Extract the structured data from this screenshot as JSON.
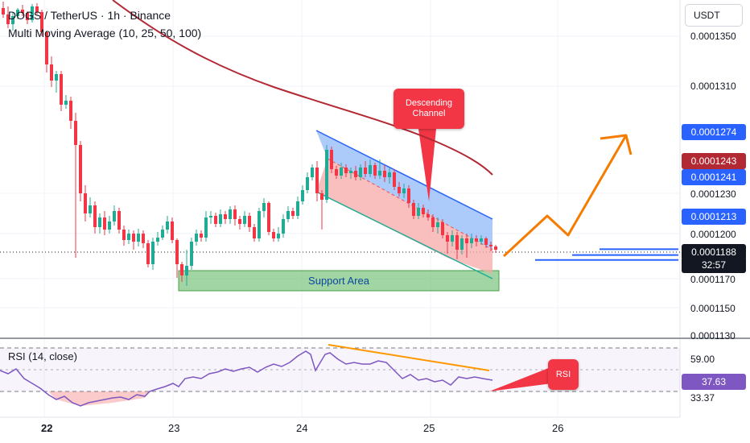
{
  "header": {
    "symbol_title": "DOGS / TetherUS · 1h · Binance",
    "indicator_title": "Multi Moving Average (10, 25, 50, 100)",
    "currency": "USDT"
  },
  "price_axis": {
    "ticks": [
      {
        "label": "0.0001350",
        "value": 0.000135
      },
      {
        "label": "0.0001310",
        "value": 0.000131
      },
      {
        "label": "0.0001230",
        "value": 0.000123
      },
      {
        "label": "0.0001200",
        "value": 0.00012
      },
      {
        "label": "0.0001170",
        "value": 0.000117
      },
      {
        "label": "0.0001150",
        "value": 0.000115
      },
      {
        "label": "0.0001130",
        "value": 0.000113
      }
    ],
    "tags": [
      {
        "label": "0.0001274",
        "value": 0.0001274,
        "style": "blue"
      },
      {
        "label": "0.0001243",
        "value": 0.0001243,
        "style": "red"
      },
      {
        "label": "0.0001241",
        "value": 0.0001241,
        "style": "blue"
      },
      {
        "label": "0.0001213",
        "value": 0.0001213,
        "style": "blue"
      },
      {
        "label": "0.0001188",
        "value": 0.0001188,
        "style": "black"
      }
    ],
    "countdown": "32:57"
  },
  "annotations": {
    "channel_callout": "Descending Channel",
    "support_label": "Support Area",
    "rsi_callout": "RSI",
    "target_levels": [
      0.0001274,
      0.0001241,
      0.0001213
    ]
  },
  "rsi": {
    "title": "RSI (14, close)",
    "ticks": [
      {
        "label": "59.00",
        "value": 59.0
      },
      {
        "label": "33.37",
        "value": 33.37
      }
    ],
    "current": {
      "label": "37.63",
      "value": 37.63
    }
  },
  "time_axis": {
    "ticks": [
      {
        "label": "22",
        "bold": true
      },
      {
        "label": "23",
        "bold": false
      },
      {
        "label": "24",
        "bold": false
      },
      {
        "label": "25",
        "bold": false
      },
      {
        "label": "26",
        "bold": false
      }
    ]
  },
  "colors": {
    "up": "#22ab94",
    "down": "#f23645",
    "ma100": "#b22833",
    "channel_line": "#2962ff",
    "channel_fill_upper": "#90b8f8",
    "channel_fill_lower": "#f7a9a9",
    "channel_bottom": "#22ab94",
    "support_fill": "#81c784",
    "projection": "#f57c00",
    "rsi_line": "#7e57c2",
    "divergence": "#ff9800"
  }
}
